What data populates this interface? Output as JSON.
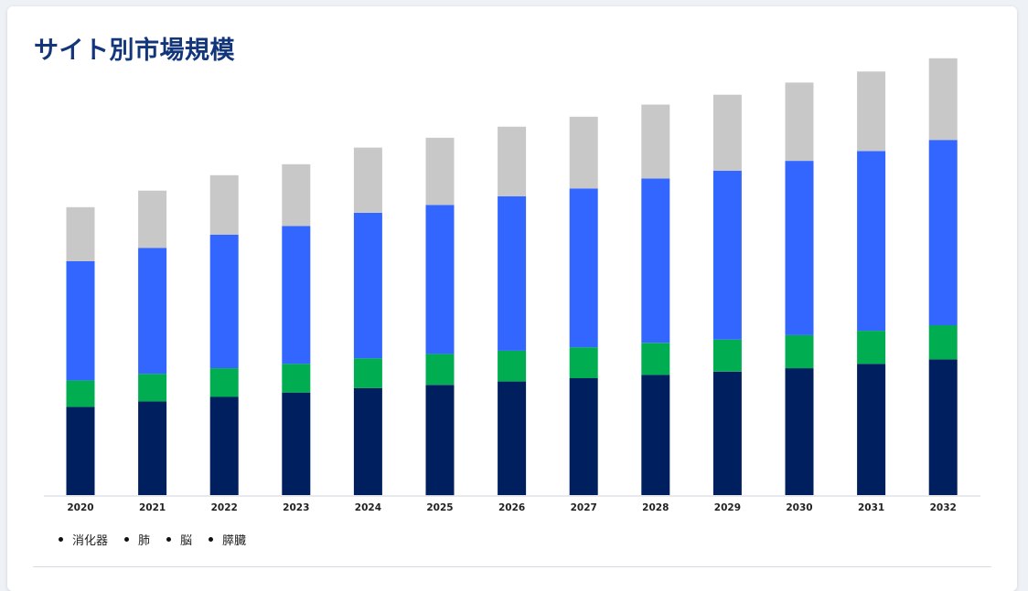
{
  "title": "サイト別市場規模",
  "chart_data": {
    "type": "bar",
    "stacked": true,
    "categories": [
      "2020",
      "2021",
      "2022",
      "2023",
      "2024",
      "2025",
      "2026",
      "2027",
      "2028",
      "2029",
      "2030",
      "2031",
      "2032"
    ],
    "series": [
      {
        "name": "消化器",
        "color": "#001f5f",
        "values": [
          80,
          85,
          89,
          93,
          97,
          100,
          103,
          106,
          109,
          112,
          115,
          119,
          123
        ]
      },
      {
        "name": "肺",
        "color": "#00ad50",
        "values": [
          24,
          25,
          26,
          26,
          27,
          28,
          28,
          28,
          29,
          29,
          30,
          30,
          31
        ]
      },
      {
        "name": "脳",
        "color": "#3366ff",
        "values": [
          108,
          114,
          121,
          125,
          132,
          135,
          140,
          144,
          149,
          153,
          158,
          163,
          168
        ]
      },
      {
        "name": "膵臓",
        "color": "#c8c8c8",
        "values": [
          49,
          52,
          54,
          56,
          59,
          61,
          63,
          65,
          67,
          69,
          71,
          72,
          74
        ]
      }
    ],
    "ylim": [
      0,
      400
    ],
    "grid": false,
    "legend_position": "bottom-left"
  }
}
